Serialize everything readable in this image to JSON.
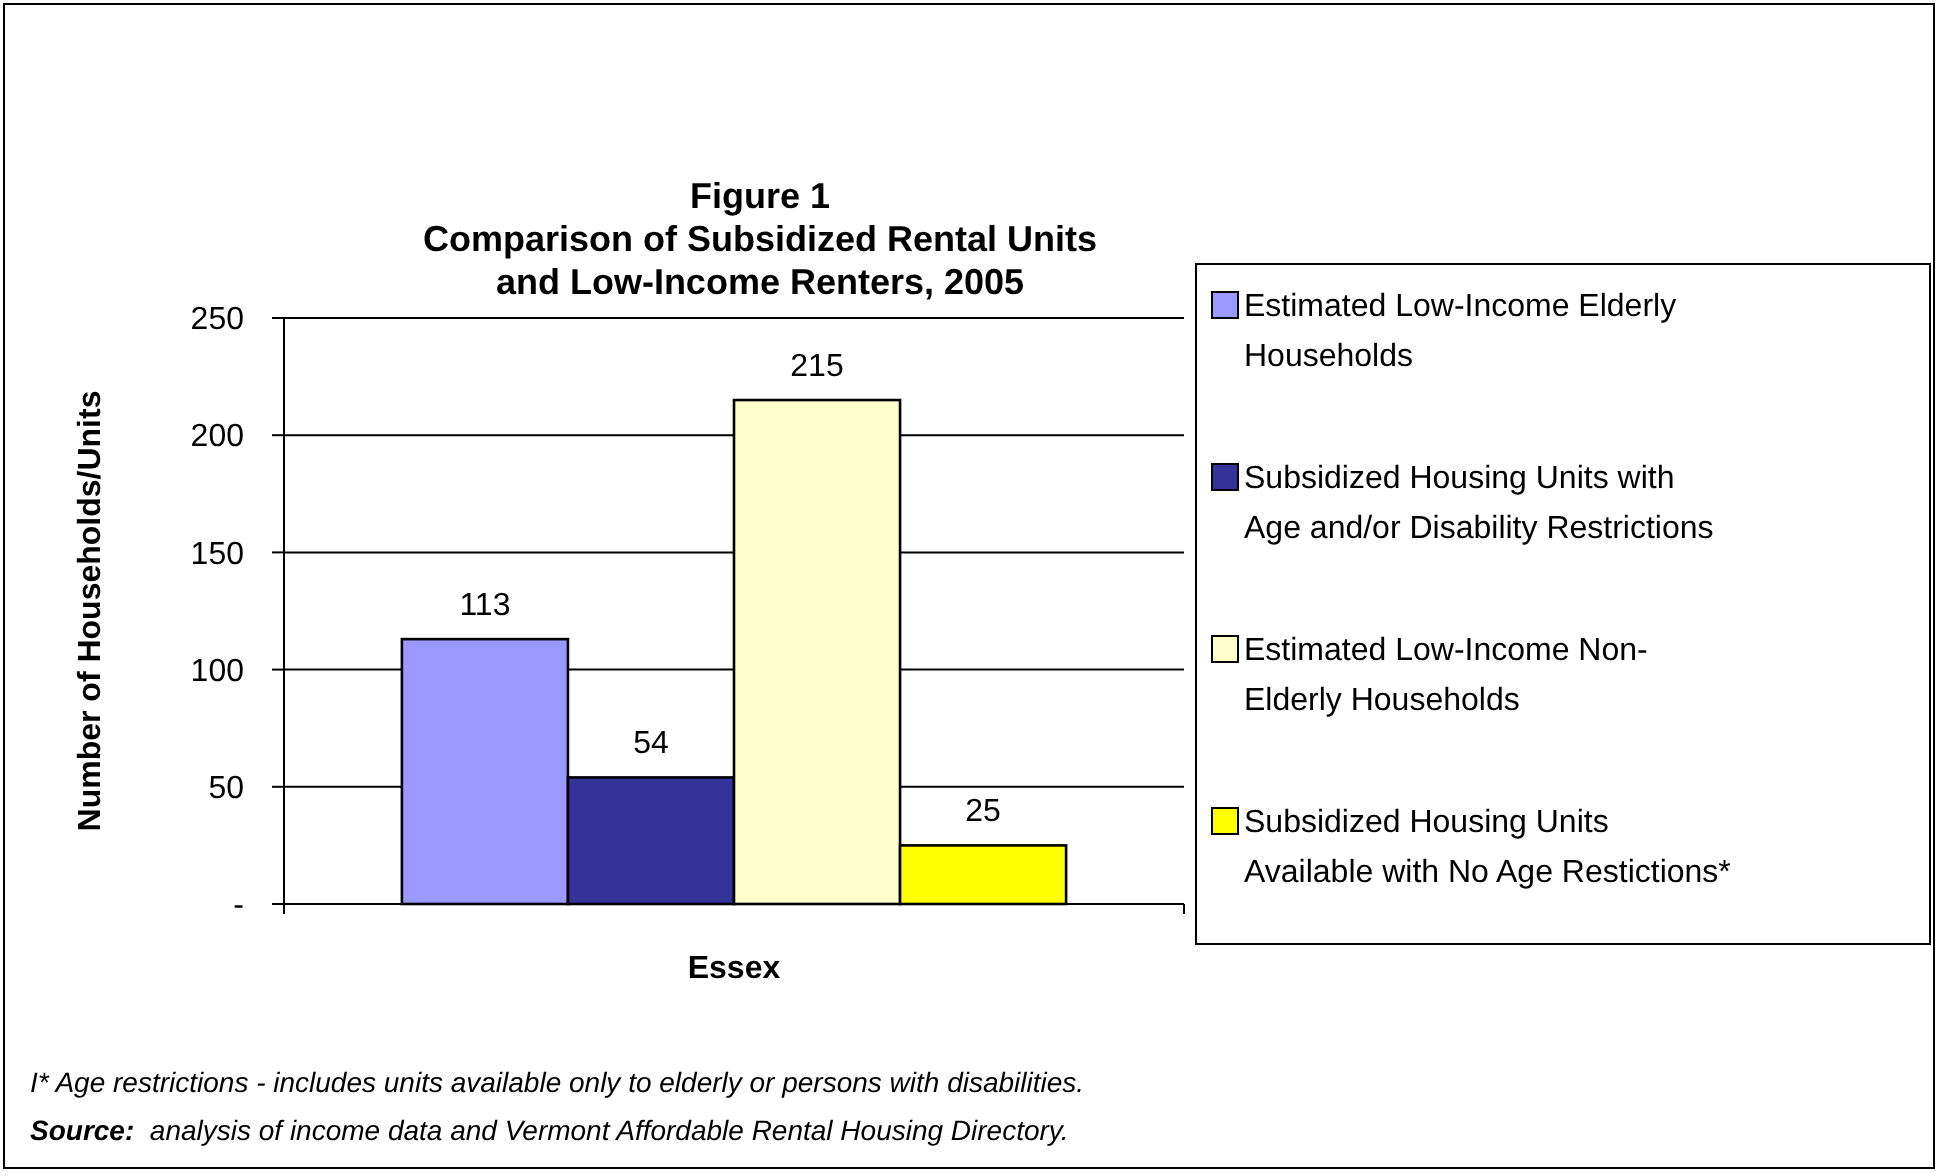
{
  "chart_data": {
    "type": "bar",
    "title": "Figure 1\nComparison of Subsidized Rental Units\nand Low-Income Renters, 2005",
    "xlabel": "Essex",
    "ylabel": "Number of Households/Units",
    "categories": [
      null
    ],
    "series": [
      {
        "name": "Estimated Low-Income Elderly\nHouseholds",
        "color": "#9999ff",
        "values": [
          113
        ]
      },
      {
        "name": "Subsidized Housing Units with\nAge and/or Disability Restrictions",
        "color": "#333399",
        "values": [
          54
        ]
      },
      {
        "name": "Estimated Low-Income Non-\nElderly Households",
        "color": "#ffffcc",
        "values": [
          215
        ]
      },
      {
        "name": "Subsidized Housing Units\nAvailable with No Age Restictions*",
        "color": "#ffff00",
        "values": [
          25
        ]
      }
    ],
    "ylim": [
      0,
      250
    ],
    "yticks": [
      {
        "value": 0,
        "label": "-"
      },
      50,
      100,
      150,
      200,
      250
    ],
    "grid": "y",
    "legend": "right",
    "data_labels": true,
    "annotations": [
      "I* Age restrictions - includes units available only to elderly or persons with disabilities.",
      "Source:  analysis of income data and Vermont Affordable Rental Housing Directory."
    ]
  }
}
